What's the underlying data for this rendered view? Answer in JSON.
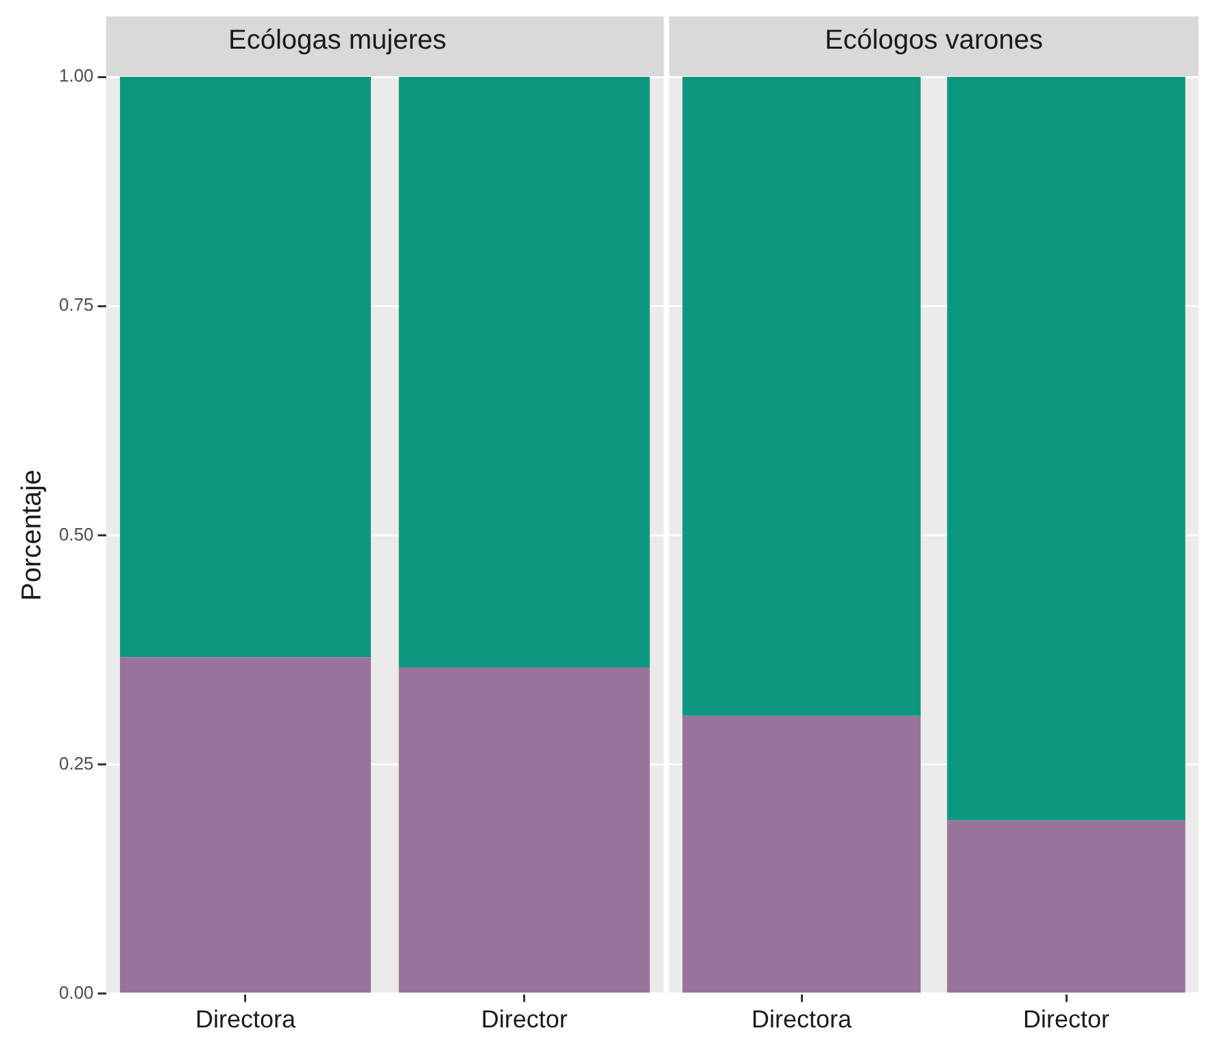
{
  "chart_data": [
    {
      "type": "bar",
      "title": "Ecólogas mujeres",
      "ylabel": "Porcentaje",
      "categories": [
        "Directora",
        "Director"
      ],
      "stacked": true,
      "ylim": [
        0,
        1
      ],
      "yticks": [
        {
          "value": 0,
          "label": "0.00"
        },
        {
          "value": 0.25,
          "label": "0.25"
        },
        {
          "value": 0.5,
          "label": "0.50"
        },
        {
          "value": 0.75,
          "label": "0.75"
        },
        {
          "value": 1,
          "label": "1.00"
        }
      ],
      "grid": true,
      "legend": false,
      "series": [
        {
          "color": "#98739b",
          "values": [
            0.367,
            0.356
          ]
        },
        {
          "color": "#0e977f",
          "values": [
            0.633,
            0.644
          ]
        }
      ]
    },
    {
      "type": "bar",
      "title": "Ecólogos varones",
      "categories": [
        "Directora",
        "Director"
      ],
      "stacked": true,
      "ylim": [
        0,
        1
      ],
      "yticks": [
        0,
        0.25,
        0.5,
        0.75,
        1
      ],
      "grid": true,
      "legend": false,
      "tick_labels": "x",
      "series": [
        {
          "color": "#98739b",
          "values": [
            0.303,
            0.189
          ]
        },
        {
          "color": "#0e977f",
          "values": [
            0.697,
            0.811
          ]
        }
      ]
    }
  ]
}
